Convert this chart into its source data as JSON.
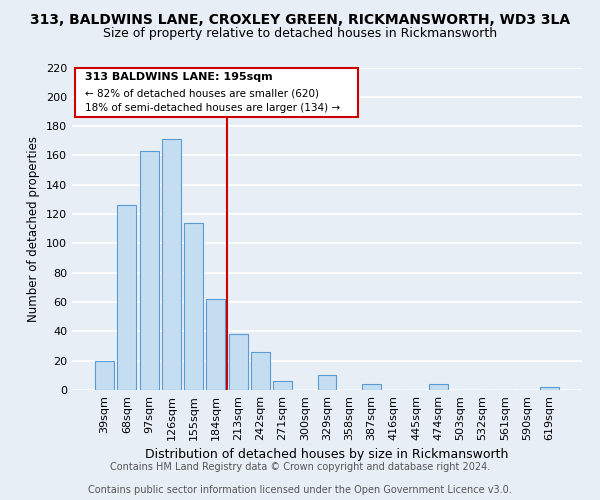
{
  "title": "313, BALDWINS LANE, CROXLEY GREEN, RICKMANSWORTH, WD3 3LA",
  "subtitle": "Size of property relative to detached houses in Rickmansworth",
  "xlabel": "Distribution of detached houses by size in Rickmansworth",
  "ylabel": "Number of detached properties",
  "bar_color": "#c5ddf0",
  "bar_edge_color": "#5b9bd5",
  "categories": [
    "39sqm",
    "68sqm",
    "97sqm",
    "126sqm",
    "155sqm",
    "184sqm",
    "213sqm",
    "242sqm",
    "271sqm",
    "300sqm",
    "329sqm",
    "358sqm",
    "387sqm",
    "416sqm",
    "445sqm",
    "474sqm",
    "503sqm",
    "532sqm",
    "561sqm",
    "590sqm",
    "619sqm"
  ],
  "values": [
    20,
    126,
    163,
    171,
    114,
    62,
    38,
    26,
    6,
    0,
    10,
    0,
    4,
    0,
    0,
    4,
    0,
    0,
    0,
    0,
    2
  ],
  "ylim": [
    0,
    220
  ],
  "yticks": [
    0,
    20,
    40,
    60,
    80,
    100,
    120,
    140,
    160,
    180,
    200,
    220
  ],
  "vline_x": 5.5,
  "vline_color": "#cc0000",
  "annotation_title": "313 BALDWINS LANE: 195sqm",
  "annotation_line1": "← 82% of detached houses are smaller (620)",
  "annotation_line2": "18% of semi-detached houses are larger (134) →",
  "annotation_box_facecolor": "#ffffff",
  "annotation_border_color": "#cc0000",
  "footer_line1": "Contains HM Land Registry data © Crown copyright and database right 2024.",
  "footer_line2": "Contains public sector information licensed under the Open Government Licence v3.0.",
  "background_color": "#e8eef5",
  "grid_color": "#ffffff",
  "title_fontsize": 10,
  "subtitle_fontsize": 9,
  "axis_fontsize": 8,
  "footer_fontsize": 7
}
